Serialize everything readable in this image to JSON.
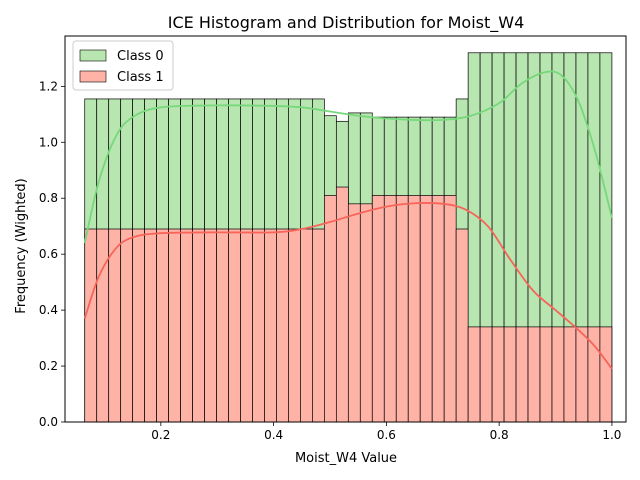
{
  "chart_data": {
    "type": "bar",
    "title": "ICE Histogram and Distribution for Moist_W4",
    "xlabel": "Moist_W4 Value",
    "ylabel": "Frequency (Wighted)",
    "xlim": [
      0.03,
      1.025
    ],
    "ylim": [
      0,
      1.38
    ],
    "xticks": [
      0.2,
      0.4,
      0.6,
      0.8,
      1.0
    ],
    "xtick_labels": [
      "0.2",
      "0.4",
      "0.6",
      "0.8",
      "1.0"
    ],
    "yticks": [
      0.0,
      0.2,
      0.4,
      0.6,
      0.8,
      1.0,
      1.2
    ],
    "ytick_labels": [
      "0.0",
      "0.2",
      "0.4",
      "0.6",
      "0.8",
      "1.0",
      "1.2"
    ],
    "bin_start": 0.065,
    "bin_width": 0.02125,
    "legend_position": "upper-left",
    "series": [
      {
        "name": "Class 0",
        "fill": "#b8e6b0",
        "kde_color": "#77d87b",
        "values": [
          1.155,
          1.155,
          1.155,
          1.155,
          1.155,
          1.155,
          1.155,
          1.155,
          1.155,
          1.155,
          1.155,
          1.155,
          1.155,
          1.155,
          1.155,
          1.155,
          1.155,
          1.155,
          1.155,
          1.155,
          1.095,
          1.075,
          1.105,
          1.105,
          1.09,
          1.09,
          1.09,
          1.09,
          1.09,
          1.09,
          1.09,
          1.155,
          1.32,
          1.32,
          1.32,
          1.32,
          1.32,
          1.32,
          1.32,
          1.32,
          1.32,
          1.32,
          1.32,
          1.32
        ]
      },
      {
        "name": "Class 1",
        "fill": "#ffb3a7",
        "kde_color": "#f7645a",
        "values": [
          0.69,
          0.69,
          0.69,
          0.69,
          0.69,
          0.69,
          0.69,
          0.69,
          0.69,
          0.69,
          0.69,
          0.69,
          0.69,
          0.69,
          0.69,
          0.69,
          0.69,
          0.69,
          0.69,
          0.69,
          0.81,
          0.84,
          0.78,
          0.78,
          0.81,
          0.81,
          0.81,
          0.81,
          0.81,
          0.81,
          0.81,
          0.69,
          0.34,
          0.34,
          0.34,
          0.34,
          0.34,
          0.34,
          0.34,
          0.34,
          0.34,
          0.34,
          0.34,
          0.34
        ]
      }
    ],
    "kde": [
      {
        "name": "Class 0",
        "points": [
          [
            0.065,
            0.64
          ],
          [
            0.09,
            0.86
          ],
          [
            0.12,
            1.02
          ],
          [
            0.15,
            1.09
          ],
          [
            0.2,
            1.125
          ],
          [
            0.3,
            1.132
          ],
          [
            0.4,
            1.13
          ],
          [
            0.45,
            1.125
          ],
          [
            0.5,
            1.11
          ],
          [
            0.55,
            1.095
          ],
          [
            0.6,
            1.085
          ],
          [
            0.65,
            1.08
          ],
          [
            0.7,
            1.08
          ],
          [
            0.75,
            1.095
          ],
          [
            0.8,
            1.14
          ],
          [
            0.84,
            1.21
          ],
          [
            0.88,
            1.25
          ],
          [
            0.91,
            1.24
          ],
          [
            0.94,
            1.15
          ],
          [
            0.97,
            0.97
          ],
          [
            1.0,
            0.73
          ]
        ]
      },
      {
        "name": "Class 1",
        "points": [
          [
            0.065,
            0.37
          ],
          [
            0.09,
            0.52
          ],
          [
            0.12,
            0.62
          ],
          [
            0.15,
            0.66
          ],
          [
            0.2,
            0.675
          ],
          [
            0.3,
            0.678
          ],
          [
            0.4,
            0.678
          ],
          [
            0.45,
            0.69
          ],
          [
            0.5,
            0.715
          ],
          [
            0.55,
            0.745
          ],
          [
            0.6,
            0.77
          ],
          [
            0.65,
            0.782
          ],
          [
            0.7,
            0.78
          ],
          [
            0.74,
            0.76
          ],
          [
            0.78,
            0.7
          ],
          [
            0.82,
            0.58
          ],
          [
            0.86,
            0.47
          ],
          [
            0.9,
            0.4
          ],
          [
            0.94,
            0.33
          ],
          [
            0.97,
            0.27
          ],
          [
            1.0,
            0.19
          ]
        ]
      }
    ]
  }
}
